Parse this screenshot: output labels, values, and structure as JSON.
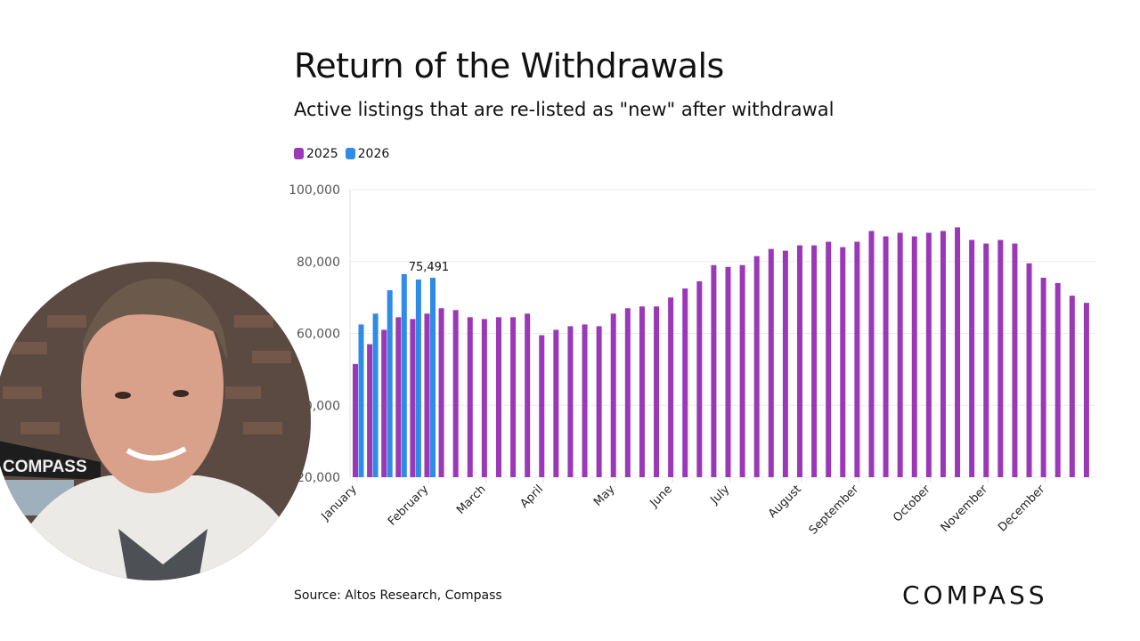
{
  "header": {
    "title": "Return of the Withdrawals",
    "subtitle": "Active listings that are re-listed as \"new\" after withdrawal"
  },
  "footer": {
    "source": "Source: Altos Research, Compass",
    "logo": "COMPASS"
  },
  "video_overlay": {
    "banner_text": "COMPASS"
  },
  "colors": {
    "2025": "#9b38b8",
    "2026": "#2e8be6",
    "grid": "#ececec"
  },
  "chart_data": {
    "type": "bar",
    "title": "Return of the Withdrawals",
    "subtitle": "Active listings that are re-listed as \"new\" after withdrawal",
    "ylim": [
      20000,
      100000
    ],
    "yticks": [
      "20,000",
      "40,000",
      "60,000",
      "80,000",
      "100,000"
    ],
    "ytick_values": [
      20000,
      40000,
      60000,
      80000,
      100000
    ],
    "grid": true,
    "legend": "top-left",
    "month_labels": [
      {
        "label": "January",
        "week": 0
      },
      {
        "label": "February",
        "week": 5
      },
      {
        "label": "March",
        "week": 9
      },
      {
        "label": "April",
        "week": 13
      },
      {
        "label": "May",
        "week": 18
      },
      {
        "label": "June",
        "week": 22
      },
      {
        "label": "July",
        "week": 26
      },
      {
        "label": "August",
        "week": 31
      },
      {
        "label": "September",
        "week": 35
      },
      {
        "label": "October",
        "week": 40
      },
      {
        "label": "November",
        "week": 44
      },
      {
        "label": "December",
        "week": 48
      }
    ],
    "series": [
      {
        "name": "2025",
        "values": [
          51500,
          57000,
          61000,
          64500,
          64000,
          65500,
          67000,
          66500,
          64500,
          64000,
          64500,
          64500,
          65500,
          59500,
          61000,
          62000,
          62500,
          62000,
          65500,
          67000,
          67500,
          67500,
          70000,
          72500,
          74500,
          79000,
          78500,
          79000,
          81500,
          83500,
          83000,
          84500,
          84500,
          85500,
          84000,
          85500,
          88500,
          87000,
          88000,
          87000,
          88000,
          88500,
          89500,
          86000,
          85000,
          86000,
          85000,
          79500,
          75500,
          74000,
          70500,
          68500
        ]
      },
      {
        "name": "2026",
        "values": [
          62500,
          65500,
          72000,
          76500,
          75000,
          75491
        ]
      }
    ],
    "annotations": [
      {
        "series": "2026",
        "week": 5,
        "text": "75,491"
      }
    ]
  }
}
